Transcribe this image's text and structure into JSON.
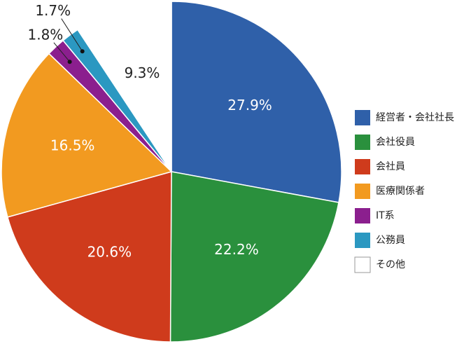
{
  "chart_data": {
    "type": "pie",
    "categories": [
      "経営者・会社社長",
      "会社役員",
      "会社員",
      "医療関係者",
      "IT系",
      "公務員",
      "その他"
    ],
    "values": [
      27.9,
      22.2,
      20.6,
      16.5,
      1.8,
      1.7,
      9.3
    ],
    "value_labels": [
      "27.9%",
      "22.2%",
      "20.6%",
      "16.5%",
      "1.8%",
      "1.7%",
      "9.3%"
    ],
    "colors": [
      "#2f60a9",
      "#2a903d",
      "#cf3b1c",
      "#f29a20",
      "#8b1f8e",
      "#2b98c1",
      "#ffffff"
    ]
  }
}
